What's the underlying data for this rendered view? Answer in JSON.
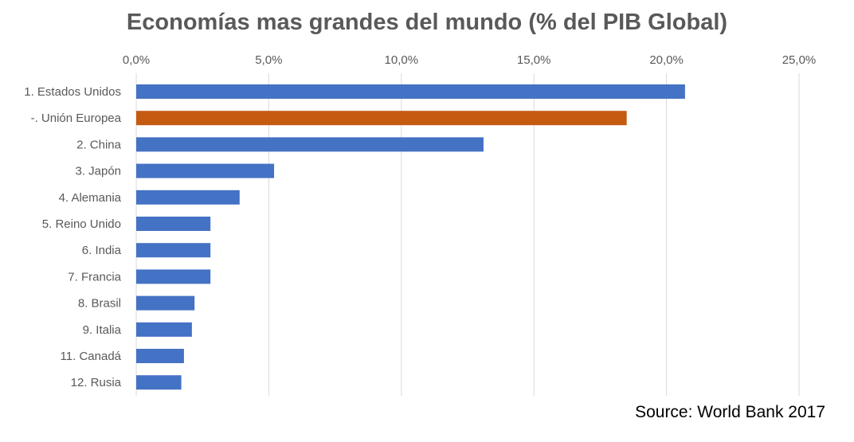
{
  "chart_data": {
    "type": "bar",
    "orientation": "horizontal",
    "title": "Economías mas grandes del mundo (% del PIB Global)",
    "categories": [
      "1. Estados Unidos",
      "-. Unión Europea",
      "2. China",
      "3. Japón",
      "4. Alemania",
      "5. Reino Unido",
      "6. India",
      "7. Francia",
      "8. Brasil",
      "9. Italia",
      "11. Canadá",
      "12. Rusia"
    ],
    "values": [
      20.7,
      18.5,
      13.1,
      5.2,
      3.9,
      2.8,
      2.8,
      2.8,
      2.2,
      2.1,
      1.8,
      1.7
    ],
    "xlim": [
      0,
      25
    ],
    "xticks": [
      0,
      5,
      10,
      15,
      20,
      25
    ],
    "tick_labels": [
      "0,0%",
      "5,0%",
      "10,0%",
      "15,0%",
      "20,0%",
      "25,0%"
    ],
    "axis_position": "top",
    "grid": true,
    "colors": {
      "default_bar": "#4472C4",
      "highlight_bar": "#C55A11",
      "grid": "#D9D9D9",
      "text": "#595959"
    },
    "highlight_index": 1
  },
  "source": "Source: World Bank 2017"
}
